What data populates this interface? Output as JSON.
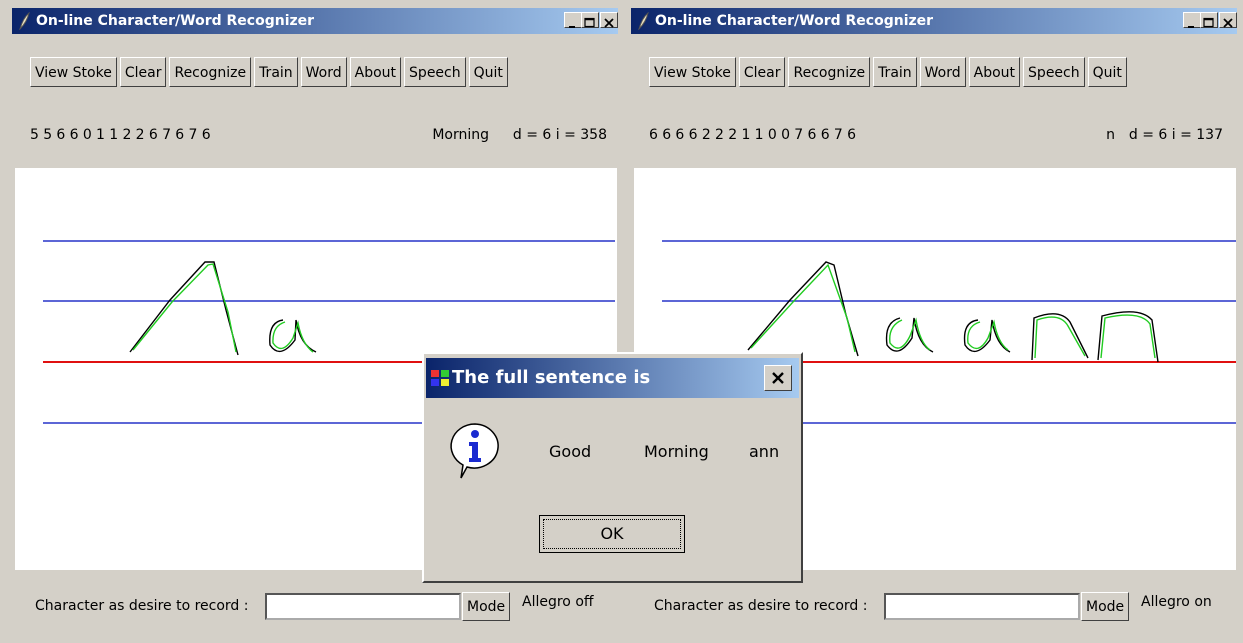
{
  "windows": [
    {
      "title": "On-line Character/Word Recognizer",
      "buttons": [
        "View Stoke",
        "Clear",
        "Recognize",
        "Train",
        "Word",
        "About",
        "Speech",
        "Quit"
      ],
      "code": "55660112267676",
      "word": "Morning",
      "stats": "d = 6 i = 358",
      "field_label": "Character as desire to record :",
      "mode_button": "Mode",
      "allegro": "Allegro off"
    },
    {
      "title": "On-line Character/Word Recognizer",
      "buttons": [
        "View Stoke",
        "Clear",
        "Recognize",
        "Train",
        "Word",
        "About",
        "Speech",
        "Quit"
      ],
      "code": "6666222110076676",
      "word": "n",
      "stats": "d = 6 i = 137",
      "field_label": "Character as desire to record :",
      "mode_button": "Mode",
      "allegro": "Allegro on"
    }
  ],
  "dialog": {
    "title": "The full sentence is",
    "words": [
      "Good",
      "Morning",
      "ann"
    ],
    "ok": "OK"
  }
}
